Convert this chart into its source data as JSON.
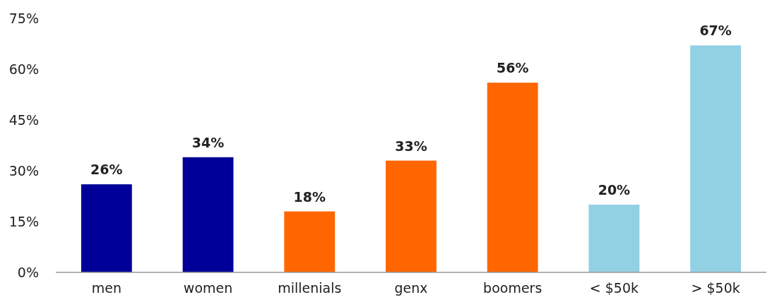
{
  "chart_data": {
    "type": "bar",
    "categories": [
      "men",
      "women",
      "millenials",
      "genx",
      "boomers",
      "< $50k",
      "> $50k"
    ],
    "values": [
      26,
      34,
      18,
      33,
      56,
      20,
      67
    ],
    "colors": [
      "#000099",
      "#000099",
      "#ff6600",
      "#ff6600",
      "#ff6600",
      "#92d0e3",
      "#92d0e3"
    ],
    "value_labels": [
      "26%",
      "34%",
      "18%",
      "33%",
      "56%",
      "20%",
      "67%"
    ],
    "ylim": [
      0,
      75
    ],
    "yticks": [
      {
        "value": 0,
        "label": "0%"
      },
      {
        "value": 15,
        "label": "15%"
      },
      {
        "value": 30,
        "label": "30%"
      },
      {
        "value": 45,
        "label": "45%"
      },
      {
        "value": 60,
        "label": "60%"
      },
      {
        "value": 75,
        "label": "75%"
      }
    ],
    "grid": false
  }
}
